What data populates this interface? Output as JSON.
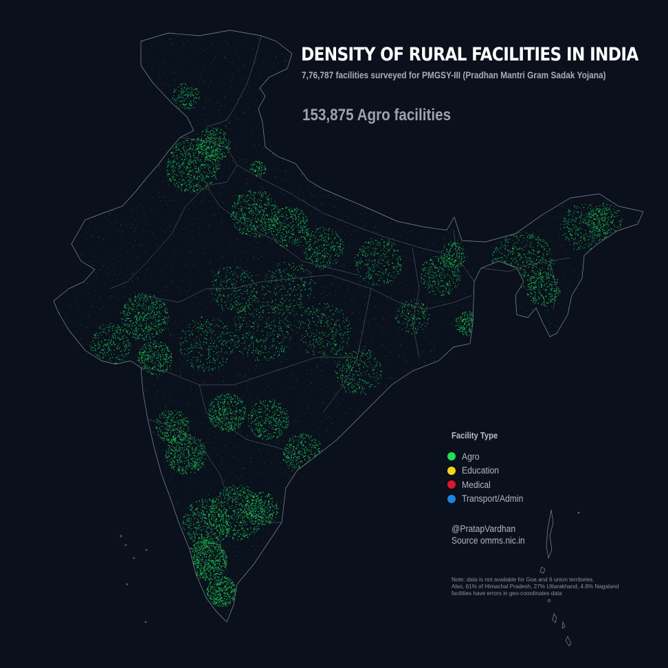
{
  "title": "DENSITY OF RURAL FACILITIES IN INDIA",
  "subtitle": "7,76,787 facilities surveyed for PMGSY-III (Pradhan Mantri Gram Sadak Yojana)",
  "facility_count": "153,875 Agro facilities",
  "legend": {
    "title": "Facility Type",
    "items": [
      {
        "label": "Agro",
        "color": "#1ee05a"
      },
      {
        "label": "Education",
        "color": "#f2d51d"
      },
      {
        "label": "Medical",
        "color": "#e0162b"
      },
      {
        "label": "Transport/Admin",
        "color": "#1c86de"
      }
    ]
  },
  "credit": {
    "author": "@PratapVardhan",
    "source": "Source omms.nic.in"
  },
  "note": {
    "lines": [
      "Note: data is not available for Goa and 6 union territories.",
      "Also, 61% of Himachal Pradesh, 27% Uttarakhand, 4.8% Nagaland",
      "facilities have errors in geo-coordinates data"
    ]
  },
  "colors": {
    "background": "#0a101c",
    "border": "#8a8f9a",
    "agro": "#1ee05a"
  }
}
